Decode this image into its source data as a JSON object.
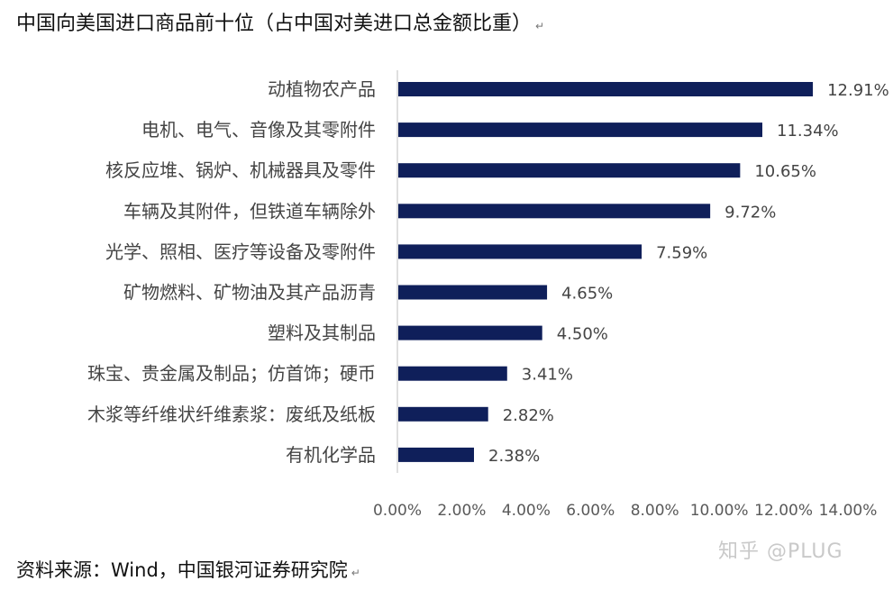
{
  "title": "中国向美国进口商品前十位（占中国对美进口总金额比重）",
  "para_mark": "↵",
  "source_note": "资料来源：Wind，中国银河证券研究院",
  "watermark": "知乎 @PLUG",
  "colors": {
    "bar": "#0f1f5a",
    "axis": "#bfbfbf",
    "text": "#444444",
    "tick": "#595959"
  },
  "chart_data": {
    "type": "bar",
    "orientation": "horizontal",
    "categories": [
      "动植物农产品",
      "电机、电气、音像及其零附件",
      "核反应堆、锅炉、机械器具及零件",
      "车辆及其附件，但铁道车辆除外",
      "光学、照相、医疗等设备及零附件",
      "矿物燃料、矿物油及其产品沥青",
      "塑料及其制品",
      "珠宝、贵金属及制品；仿首饰；硬币",
      "木浆等纤维状纤维素浆：废纸及纸板",
      "有机化学品"
    ],
    "values": [
      12.91,
      11.34,
      10.65,
      9.72,
      7.59,
      4.65,
      4.5,
      3.41,
      2.82,
      2.38
    ],
    "value_labels": [
      "12.91%",
      "11.34%",
      "10.65%",
      "9.72%",
      "7.59%",
      "4.65%",
      "4.50%",
      "3.41%",
      "2.82%",
      "2.38%"
    ],
    "xlim": [
      0,
      14
    ],
    "x_ticks": [
      "0.00%",
      "2.00%",
      "4.00%",
      "6.00%",
      "8.00%",
      "10.00%",
      "12.00%",
      "14.00%"
    ],
    "x_tick_values": [
      0,
      2,
      4,
      6,
      8,
      10,
      12,
      14
    ],
    "grid": false,
    "legend": "none"
  }
}
